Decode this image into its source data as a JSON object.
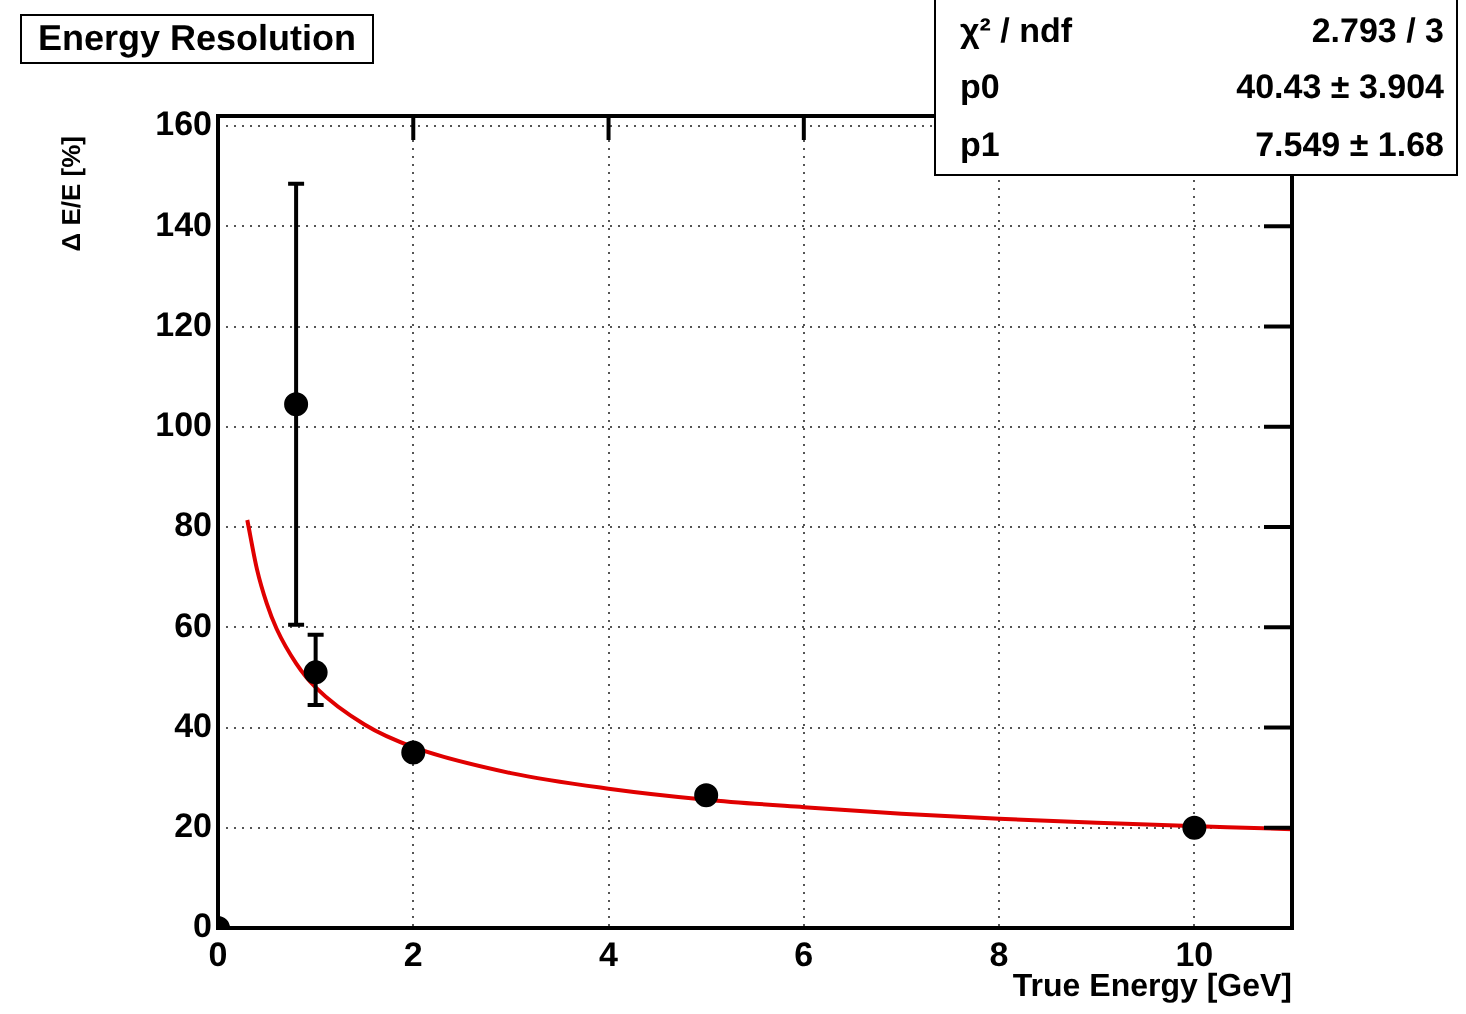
{
  "chart_data": {
    "type": "scatter",
    "title": "Energy Resolution",
    "xlabel": "True Energy [GeV]",
    "ylabel": "Δ E/E [%]",
    "xlim": [
      0,
      11
    ],
    "xticks": [
      0,
      2,
      4,
      6,
      8,
      10
    ],
    "ylim": [
      0,
      162
    ],
    "yticks": [
      0,
      20,
      40,
      60,
      80,
      100,
      120,
      140,
      160
    ],
    "grid": true,
    "legend": false,
    "annotations": [
      "χ² / ndf",
      "2.793 / 3",
      "p0",
      "40.43 ± 3.904",
      "p1",
      "7.549 ±  1.68"
    ],
    "series": [
      {
        "marker": "circle",
        "color": "#000000",
        "x": [
          0,
          0.8,
          1,
          2,
          5,
          10
        ],
        "values": [
          0,
          104.5,
          51,
          35,
          26.5,
          20
        ],
        "errors": [
          null,
          [
            60.5,
            148.5
          ],
          [
            44.5,
            58.5
          ],
          null,
          null,
          null
        ]
      },
      {
        "type": "line",
        "color": "#e00000",
        "x": [
          0.3,
          0.4,
          0.5,
          0.6,
          0.8,
          1,
          1.5,
          2,
          3,
          4,
          5,
          6,
          7,
          8,
          9,
          10,
          11
        ],
        "values": [
          81.4,
          71.5,
          64.7,
          59.7,
          52.8,
          48.0,
          40.6,
          36.1,
          30.9,
          27.8,
          25.6,
          24.1,
          22.8,
          21.8,
          21.0,
          null,
          19.7
        ]
      }
    ]
  }
}
